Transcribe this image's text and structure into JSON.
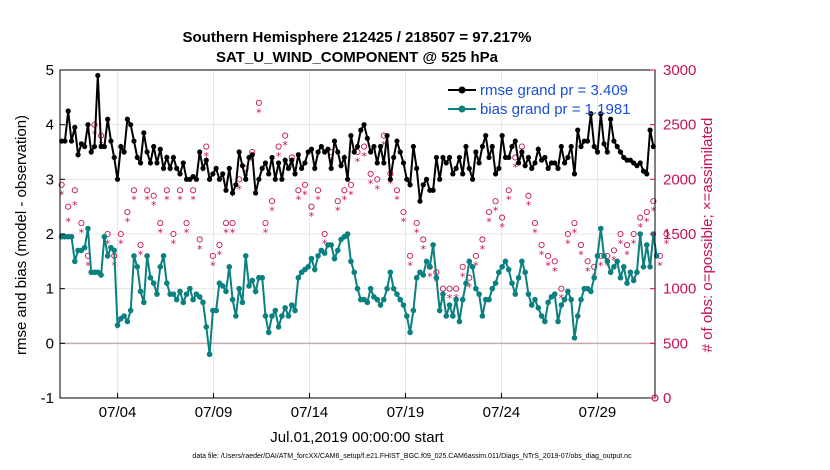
{
  "chart_data": {
    "type": "line",
    "title": "Southern Hemisphere 212425 / 218507 = 97.217%",
    "subtitle": "SAT_U_WIND_COMPONENT @ 525 hPa",
    "xlabel": "Jul.01,2019 00:00:00 start",
    "ylabel_left": "rmse and bias (model - observation)",
    "ylabel_right": "# of obs: o=possible; ×=assimilated",
    "footer": "data file: /Users/raeder/DAI/ATM_forcXX/CAM6_setup/f.e21.FHIST_BGC.f09_025.CAM6assim.011/Diags_NTrS_2019-07/obs_diag_output.nc",
    "x_tick_labels": [
      "07/04",
      "07/09",
      "07/14",
      "07/19",
      "07/24",
      "07/29"
    ],
    "x_tick_days": [
      3,
      8,
      13,
      18,
      23,
      28
    ],
    "xlim_days": [
      0,
      31
    ],
    "ylim_left": [
      -1,
      5
    ],
    "y_ticks_left": [
      "-1",
      "0",
      "1",
      "2",
      "3",
      "4",
      "5"
    ],
    "ylim_right": [
      0,
      3000
    ],
    "y_ticks_right": [
      "0",
      "500",
      "1000",
      "1500",
      "2000",
      "2500",
      "3000"
    ],
    "grid": true,
    "zero_line": 0,
    "legend_position": "top-right",
    "colors": {
      "rmse": "#000000",
      "bias": "#0a8080",
      "obs": "#c8105a",
      "legend_text": "#1a4fd6",
      "zero_line": "#c8a8a8",
      "grid": "#e6e6e6"
    },
    "series": [
      {
        "name": "rmse grand pr = 3.409",
        "axis": "left",
        "values": [
          3.7,
          3.7,
          4.25,
          3.7,
          3.95,
          3.45,
          3.65,
          3.6,
          4.0,
          3.5,
          3.6,
          4.9,
          3.6,
          3.6,
          4.1,
          3.7,
          3.4,
          3.0,
          3.6,
          3.5,
          4.1,
          4.0,
          3.7,
          3.4,
          3.3,
          3.85,
          3.5,
          3.3,
          3.6,
          3.3,
          3.55,
          3.2,
          3.4,
          3.2,
          3.4,
          3.2,
          3.1,
          3.3,
          3.0,
          3.0,
          3.05,
          3.0,
          3.5,
          3.2,
          3.35,
          3.0,
          3.1,
          3.2,
          3.0,
          3.1,
          2.8,
          3.2,
          2.75,
          2.9,
          3.5,
          3.25,
          3.0,
          3.4,
          3.45,
          2.75,
          3.0,
          3.2,
          3.3,
          3.1,
          3.4,
          3.0,
          3.3,
          3.0,
          3.35,
          3.2,
          3.35,
          3.1,
          3.45,
          3.2,
          3.3,
          3.5,
          3.55,
          3.2,
          3.5,
          3.6,
          3.5,
          3.55,
          3.2,
          3.7,
          3.5,
          3.25,
          3.4,
          3.0,
          3.8,
          3.5,
          3.6,
          3.9,
          4.0,
          3.75,
          3.5,
          3.6,
          3.3,
          3.6,
          3.3,
          3.8,
          3.0,
          3.4,
          3.7,
          3.5,
          3.3,
          3.0,
          2.9,
          3.6,
          3.2,
          2.6,
          2.9,
          3.0,
          2.8,
          2.8,
          3.4,
          3.0,
          3.4,
          3.3,
          3.4,
          3.1,
          3.2,
          3.4,
          3.1,
          3.6,
          3.2,
          3.0,
          3.5,
          3.3,
          3.6,
          3.8,
          3.4,
          3.6,
          3.1,
          3.2,
          3.8,
          3.4,
          3.4,
          3.6,
          3.7,
          3.3,
          3.5,
          3.25,
          3.4,
          3.2,
          3.3,
          3.55,
          3.35,
          3.4,
          3.2,
          3.3,
          3.3,
          3.2,
          3.6,
          3.3,
          3.4,
          3.6,
          3.1,
          3.9,
          3.6,
          3.7,
          3.7,
          4.2,
          3.6,
          3.5,
          4.2,
          3.65,
          3.5,
          4.1,
          3.7,
          3.6,
          3.5,
          3.4,
          3.35,
          3.35,
          3.3,
          3.25,
          3.3,
          3.15,
          3.1,
          3.9,
          3.6
        ]
      },
      {
        "name": "bias grand pr = 1.1981",
        "axis": "left",
        "values": [
          1.95,
          1.95,
          1.95,
          1.95,
          1.5,
          1.7,
          1.7,
          1.75,
          2.1,
          1.3,
          1.3,
          1.3,
          1.25,
          1.95,
          1.6,
          1.75,
          1.7,
          0.33,
          0.45,
          0.5,
          0.4,
          0.6,
          1.6,
          1.4,
          0.95,
          0.75,
          1.6,
          1.2,
          1.1,
          0.9,
          1.4,
          1.6,
          1.1,
          0.9,
          0.9,
          0.8,
          0.95,
          0.75,
          0.9,
          1.0,
          0.8,
          0.9,
          0.85,
          0.75,
          0.3,
          -0.2,
          0.6,
          0.6,
          1.1,
          1.05,
          0.95,
          1.4,
          0.8,
          0.5,
          1.0,
          0.75,
          1.6,
          1.05,
          1.15,
          0.95,
          1.2,
          1.2,
          0.5,
          0.2,
          0.5,
          0.6,
          0.3,
          0.5,
          0.65,
          0.5,
          0.7,
          0.6,
          1.2,
          1.3,
          1.35,
          1.4,
          1.55,
          1.35,
          1.6,
          1.7,
          1.65,
          1.8,
          1.8,
          1.55,
          1.7,
          1.9,
          1.95,
          2.0,
          1.5,
          1.3,
          1.0,
          0.8,
          0.8,
          0.75,
          1.0,
          0.85,
          0.8,
          0.7,
          0.8,
          1.0,
          1.3,
          1.0,
          0.9,
          0.8,
          0.7,
          0.5,
          0.2,
          0.6,
          1.2,
          1.3,
          1.25,
          1.5,
          1.4,
          1.8,
          1.2,
          0.6,
          0.9,
          0.5,
          0.7,
          0.5,
          0.8,
          0.4,
          0.8,
          1.1,
          1.5,
          1.4,
          1.0,
          0.9,
          0.5,
          0.8,
          0.8,
          1.0,
          1.1,
          1.3,
          1.4,
          1.5,
          1.35,
          1.1,
          0.9,
          1.2,
          1.5,
          1.3,
          0.9,
          0.7,
          0.8,
          0.65,
          0.5,
          0.4,
          0.75,
          0.85,
          0.9,
          0.4,
          0.7,
          0.8,
          0.95,
          0.8,
          0.1,
          0.5,
          0.8,
          1.0,
          1.0,
          0.95,
          1.2,
          1.6,
          2.1,
          1.6,
          1.5,
          1.3,
          1.4,
          1.5,
          1.2,
          1.4,
          1.1,
          1.3,
          1.15,
          1.3,
          2.0,
          1.4,
          1.8,
          1.4,
          2.0,
          1.6
        ]
      },
      {
        "name": "possible obs (o)",
        "axis": "right",
        "values": [
          1950,
          1950,
          1750,
          1800,
          1900,
          2000,
          1600,
          1400,
          1300,
          1450,
          2500,
          1450,
          2400,
          1390,
          1500,
          1400,
          1300,
          1450,
          1500,
          1300,
          1700,
          1300,
          1900,
          1600,
          1400,
          1450,
          1900,
          1600,
          1850,
          1650,
          1600,
          1650,
          1900,
          1700,
          1500,
          1800,
          1900,
          1500,
          1600,
          1800,
          1900,
          1350,
          1450,
          2000,
          2300,
          1300,
          1300,
          1550,
          1400,
          1500,
          1600,
          1700,
          1600,
          1800,
          2000,
          2550,
          2100,
          2200,
          2250,
          2300,
          2700,
          1800,
          1600,
          2500,
          1800,
          2100,
          2300,
          2300,
          2400,
          2350,
          2200,
          2500,
          1900,
          1800,
          1950,
          2200,
          1750,
          2450,
          1900,
          1350,
          1500,
          2450,
          2250,
          1700,
          1800,
          1800,
          1900,
          1850,
          1950,
          2100,
          2250,
          2500,
          2300,
          2150,
          2050,
          2000,
          2000,
          2400,
          2400,
          2200,
          2050,
          2000,
          1900,
          1700,
          1700,
          1500,
          1300,
          1300,
          1600,
          1600,
          1450,
          1300,
          1200,
          1350,
          1150,
          1200,
          1000,
          1100,
          1000,
          1200,
          1000,
          1100,
          1200,
          1000,
          1100,
          1050,
          1300,
          1400,
          1450,
          1650,
          1700,
          1750,
          1800,
          1800,
          1650,
          1800,
          1900,
          2300,
          2200,
          2400,
          2300,
          2100,
          1850,
          1700,
          1600,
          1600,
          1400,
          1450,
          1300,
          1300,
          1250,
          1200,
          1000,
          1400,
          1500,
          1500,
          1600,
          1700,
          1400,
          1300,
          1250,
          1200,
          1200,
          1150,
          1300,
          1250,
          1300,
          1400,
          1350,
          1500,
          1500,
          1500,
          1400,
          1400,
          1500,
          1500,
          1650,
          1650,
          1700,
          1750,
          1800,
          1500,
          1300,
          1500,
          1500
        ]
      },
      {
        "name": "assimilated obs (×)",
        "axis": "right",
        "values": [
          1900,
          1850,
          1650,
          1750,
          1800,
          1950,
          1550,
          1350,
          1250,
          1400,
          2450,
          1400,
          2350,
          1340,
          1450,
          1350,
          1250,
          1400,
          1450,
          1250,
          1650,
          1250,
          1850,
          1550,
          1350,
          1400,
          1850,
          1550,
          1800,
          1600,
          1550,
          1600,
          1850,
          1650,
          1450,
          1750,
          1850,
          1450,
          1550,
          1750,
          1850,
          1300,
          1400,
          1950,
          2250,
          1250,
          1250,
          1500,
          1350,
          1450,
          1550,
          1650,
          1550,
          1750,
          1950,
          2500,
          2050,
          2150,
          2200,
          2250,
          2650,
          1750,
          1550,
          2450,
          1750,
          2050,
          2250,
          2250,
          2350,
          2300,
          2150,
          2450,
          1850,
          1750,
          1900,
          2150,
          1700,
          2400,
          1850,
          1300,
          1450,
          2400,
          2200,
          1650,
          1750,
          1750,
          1850,
          1800,
          1900,
          2050,
          2200,
          2450,
          2250,
          2100,
          2000,
          1950,
          1950,
          2350,
          2350,
          2150,
          2000,
          1950,
          1850,
          1650,
          1650,
          1450,
          1250,
          1250,
          1550,
          1550,
          1400,
          1250,
          1150,
          1300,
          1100,
          1150,
          950,
          1050,
          950,
          1150,
          950,
          1050,
          1150,
          950,
          1050,
          1000,
          1250,
          1350,
          1400,
          1600,
          1650,
          1700,
          1750,
          1750,
          1600,
          1750,
          1850,
          2250,
          2150,
          2350,
          2250,
          2050,
          1800,
          1650,
          1550,
          1550,
          1350,
          1400,
          1250,
          1250,
          1200,
          1150,
          950,
          1350,
          1450,
          1450,
          1550,
          1650,
          1350,
          1250,
          1200,
          1150,
          1150,
          1100,
          1250,
          1200,
          1250,
          1350,
          1300,
          1450,
          1450,
          1450,
          1350,
          1350,
          1450,
          1450,
          1600,
          1600,
          1650,
          1700,
          1750,
          1450,
          1250,
          1450,
          1450
        ]
      }
    ]
  }
}
